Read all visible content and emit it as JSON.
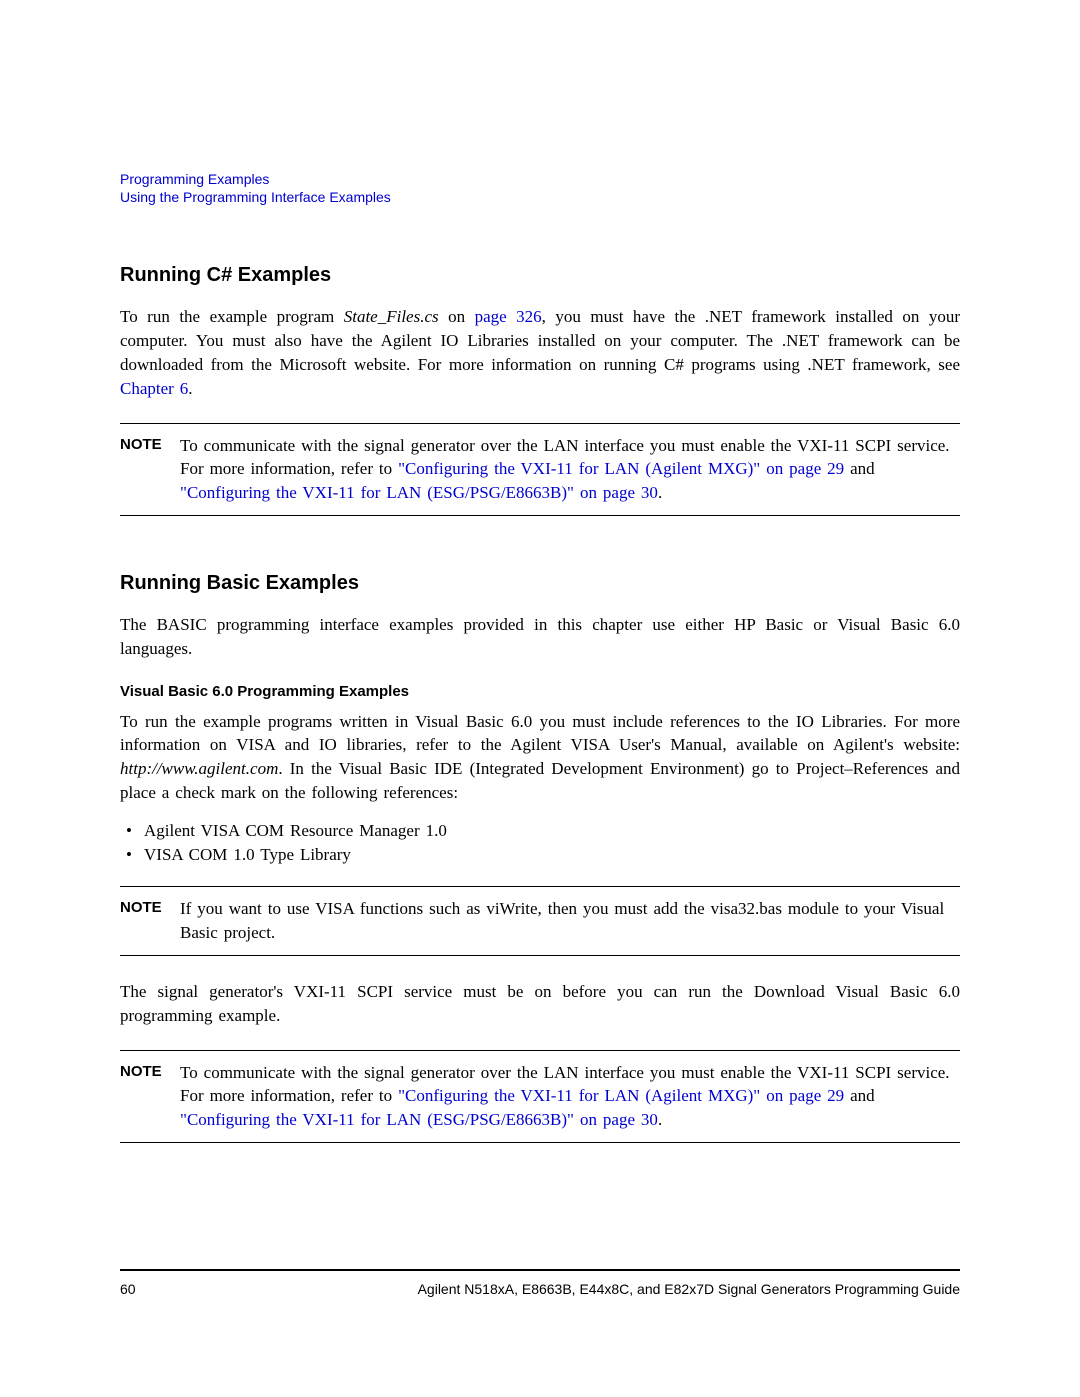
{
  "header": {
    "line1": "Programming Examples",
    "line2": "Using the Programming Interface Examples"
  },
  "section1": {
    "heading": "Running C# Examples",
    "para_pre": "To run the example program ",
    "para_italic": "State_Files.cs",
    "para_mid1": " on ",
    "para_link1": "page 326",
    "para_mid2": ", you must have the .NET framework installed on your computer. You must also have the Agilent IO Libraries installed on your computer. The .NET framework can be downloaded from the Microsoft website. For more information on running C# programs using .NET framework, see ",
    "para_link2": "Chapter 6",
    "para_end": "."
  },
  "note1": {
    "label": "NOTE",
    "text_pre": "To communicate with the signal generator over the LAN interface you must enable the VXI-11 SCPI service. For more information, refer to ",
    "link1": "\"Configuring the VXI-11 for LAN (Agilent MXG)\" on page 29",
    "text_mid": " and ",
    "link2": "\"Configuring the VXI-11 for LAN (ESG/PSG/E8663B)\" on page 30",
    "text_end": "."
  },
  "section2": {
    "heading": "Running Basic Examples",
    "para1": "The BASIC programming interface examples provided in this chapter use either HP Basic or Visual Basic 6.0 languages.",
    "subheading": "Visual Basic 6.0 Programming Examples",
    "para2_pre": "To run the example programs written in Visual Basic 6.0 you must include references to the IO Libraries. For more information on VISA and IO libraries, refer to the Agilent VISA User's Manual, available on Agilent's website: ",
    "para2_italic": "http://www.agilent.com",
    "para2_post": ". In the Visual Basic IDE (Integrated Development Environment) go to Project–References and place a check mark on the following references:",
    "bullets": [
      "Agilent VISA COM Resource Manager 1.0",
      "VISA COM 1.0 Type Library"
    ],
    "para3": "The signal generator's VXI-11 SCPI service must be on before you can run the Download Visual Basic 6.0 programming example."
  },
  "note2": {
    "label": "NOTE",
    "text": "If you want to use VISA functions such as viWrite, then you must add the visa32.bas module to your Visual Basic project."
  },
  "note3": {
    "label": "NOTE",
    "text_pre": "To communicate with the signal generator over the LAN interface you must enable the VXI-11 SCPI service. For more information, refer to ",
    "link1": "\"Configuring the VXI-11 for LAN (Agilent MXG)\" on page 29",
    "text_mid": " and ",
    "link2": "\"Configuring the VXI-11 for LAN (ESG/PSG/E8663B)\" on page 30",
    "text_end": "."
  },
  "footer": {
    "page_number": "60",
    "text": "Agilent N518xA, E8663B, E44x8C, and E82x7D Signal Generators Programming Guide"
  },
  "colors": {
    "link_color": "#0000d0",
    "text_color": "#000000",
    "background": "#ffffff"
  }
}
